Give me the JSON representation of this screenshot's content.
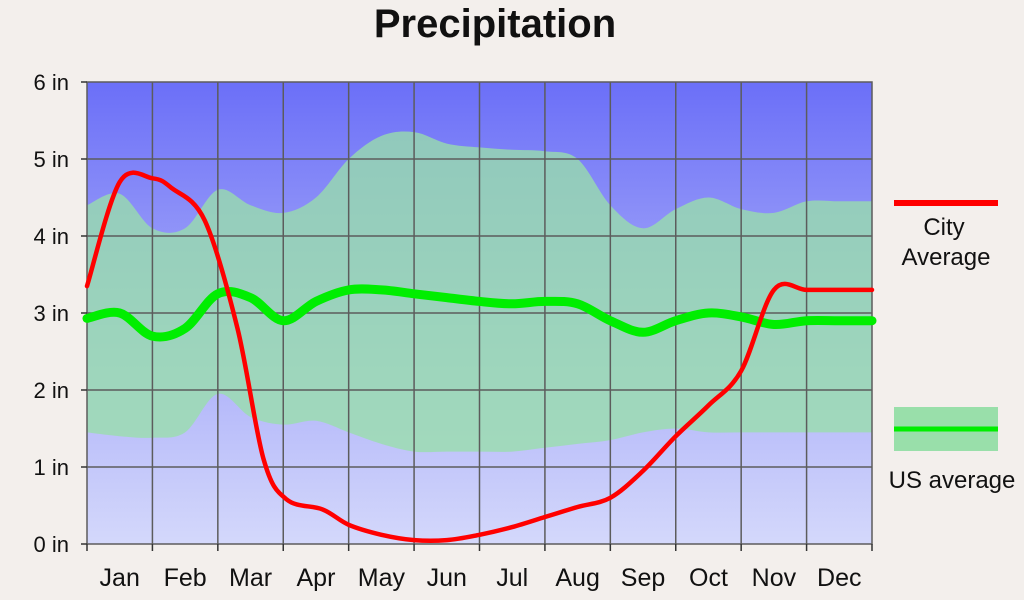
{
  "chart_data": {
    "type": "line",
    "title": "Precipitation",
    "xlabel": "",
    "ylabel": "",
    "ylim": [
      0,
      6
    ],
    "ytick_labels": [
      "0 in",
      "1 in",
      "2 in",
      "3 in",
      "4 in",
      "5 in",
      "6 in"
    ],
    "categories": [
      "Jan",
      "Feb",
      "Mar",
      "Apr",
      "May",
      "Jun",
      "Jul",
      "Aug",
      "Sep",
      "Oct",
      "Nov",
      "Dec"
    ],
    "grid": true,
    "legend_position": "right",
    "series": [
      {
        "name": "City Average",
        "legend_lines": [
          "City",
          "Average"
        ],
        "color": "#ff0000",
        "x": [
          0,
          0.5,
          1.0,
          1.3,
          1.8,
          2.3,
          2.7,
          3.05,
          3.6,
          4.0,
          4.5,
          5.0,
          5.5,
          6.0,
          6.5,
          7.0,
          7.5,
          8.0,
          8.5,
          9.0,
          9.5,
          10.0,
          10.5,
          11.0,
          11.5,
          12.0
        ],
        "values": [
          3.35,
          4.7,
          4.75,
          4.62,
          4.2,
          2.8,
          1.1,
          0.58,
          0.45,
          0.25,
          0.12,
          0.05,
          0.05,
          0.12,
          0.22,
          0.35,
          0.48,
          0.6,
          0.95,
          1.4,
          1.8,
          2.25,
          3.3,
          3.3,
          3.3,
          3.3
        ]
      },
      {
        "name": "US average",
        "legend_lines": [
          "US average"
        ],
        "color": "#00ee00",
        "x": [
          0,
          0.5,
          1.0,
          1.5,
          2.0,
          2.5,
          3.0,
          3.5,
          4.0,
          4.5,
          5.0,
          5.5,
          6.0,
          6.5,
          7.0,
          7.5,
          8.0,
          8.5,
          9.0,
          9.5,
          10.0,
          10.5,
          11.0,
          11.5,
          12.0
        ],
        "values": [
          2.93,
          3.0,
          2.7,
          2.8,
          3.25,
          3.2,
          2.9,
          3.15,
          3.3,
          3.3,
          3.25,
          3.2,
          3.15,
          3.12,
          3.15,
          3.12,
          2.9,
          2.75,
          2.9,
          3.0,
          2.95,
          2.85,
          2.9,
          2.9,
          2.9
        ]
      }
    ],
    "us_band": {
      "x": [
        0,
        0.5,
        1.0,
        1.5,
        2.0,
        2.5,
        3.0,
        3.5,
        4.0,
        4.5,
        5.0,
        5.5,
        6.0,
        6.5,
        7.0,
        7.5,
        8.0,
        8.5,
        9.0,
        9.5,
        10.0,
        10.5,
        11.0,
        11.5,
        12.0
      ],
      "upper": [
        4.4,
        4.55,
        4.1,
        4.1,
        4.6,
        4.4,
        4.3,
        4.5,
        5.0,
        5.3,
        5.35,
        5.2,
        5.15,
        5.12,
        5.1,
        5.0,
        4.4,
        4.1,
        4.35,
        4.5,
        4.35,
        4.3,
        4.45,
        4.45,
        4.45
      ],
      "lower": [
        1.45,
        1.4,
        1.38,
        1.45,
        1.95,
        1.65,
        1.55,
        1.6,
        1.45,
        1.3,
        1.2,
        1.2,
        1.2,
        1.2,
        1.25,
        1.3,
        1.35,
        1.45,
        1.5,
        1.45,
        1.45,
        1.45,
        1.45,
        1.45,
        1.45
      ],
      "color": "#99dfaa"
    },
    "colors": {
      "plot_top": "#6b6ff8",
      "plot_bottom": "#d4d8fb",
      "grid": "#5c5c5c",
      "band": "#99dfaa"
    }
  }
}
